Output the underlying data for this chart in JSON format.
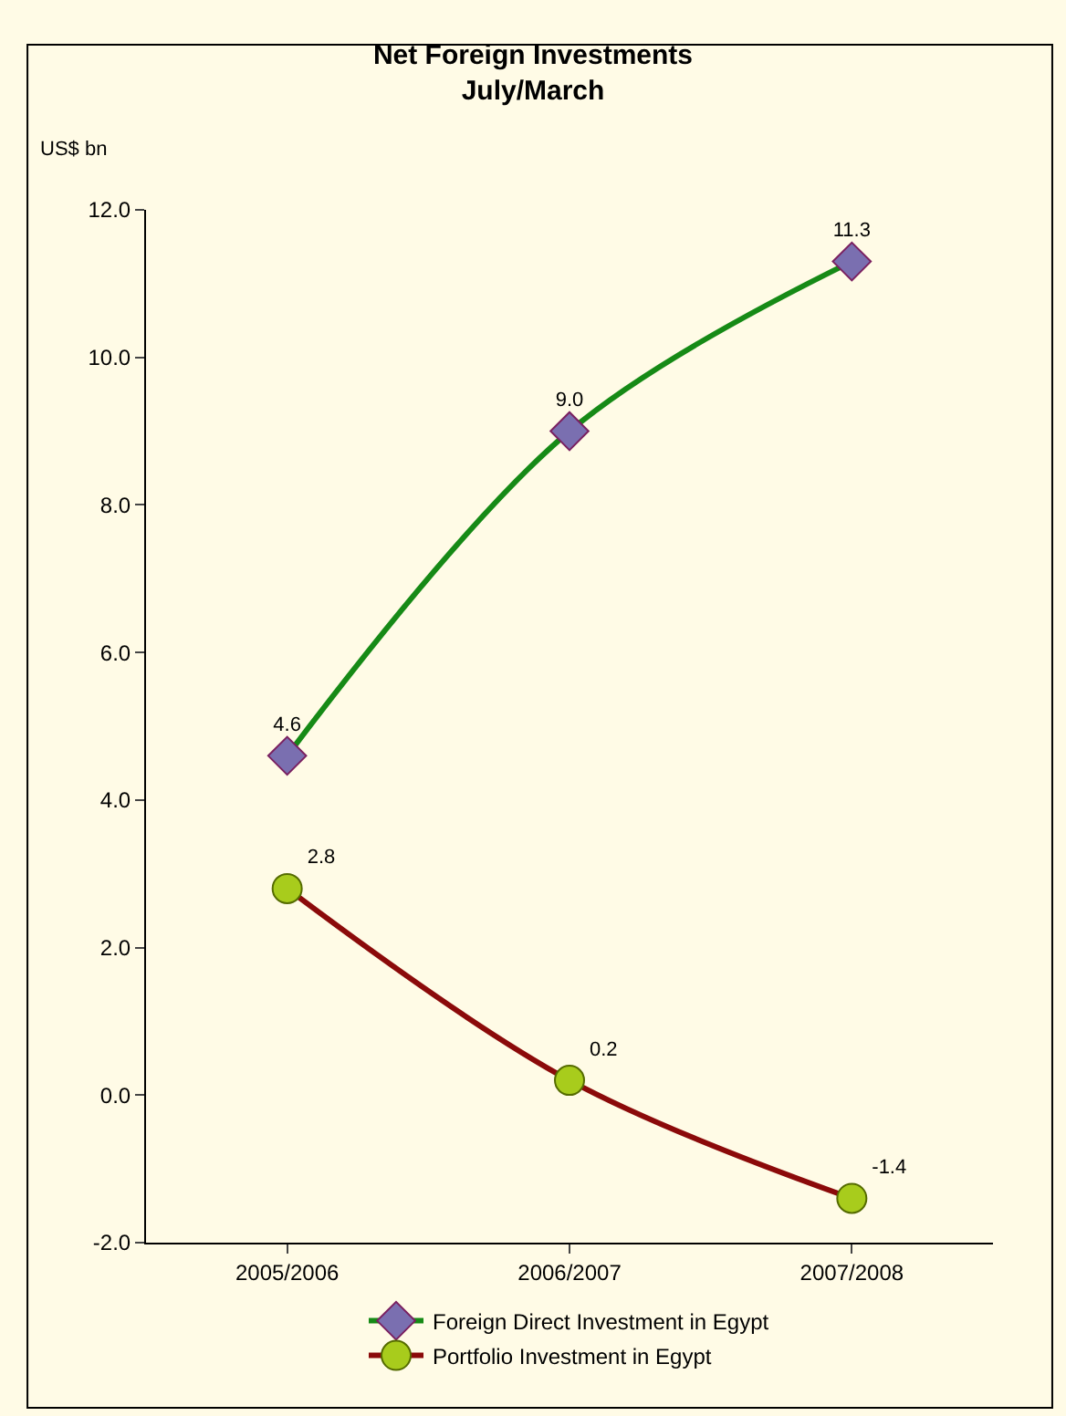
{
  "chart_data": {
    "type": "line",
    "title": "Net Foreign Investments\nJuly/March",
    "ylabel": "US$ bn",
    "categories": [
      "2005/2006",
      "2006/2007",
      "2007/2008"
    ],
    "series": [
      {
        "name": "Foreign Direct Investment in Egypt",
        "color": "#168a16",
        "marker": "diamond",
        "colors": [
          "#7a6fb0",
          "#7a6fb0",
          "#7a6fb0"
        ],
        "values": [
          4.6,
          9.0,
          11.3
        ],
        "value_labels": [
          "4.6",
          "9.0",
          "11.3"
        ]
      },
      {
        "name": "Portfolio Investment in Egypt",
        "color": "#8b0a0a",
        "marker": "circle",
        "colors": [
          "#a8cc1c",
          "#a8cc1c",
          "#a8cc1c"
        ],
        "values": [
          2.8,
          0.2,
          -1.4
        ],
        "value_labels": [
          "2.8",
          "0.2",
          "-1.4"
        ]
      }
    ],
    "ylim": [
      -2,
      12
    ],
    "yticks": [
      {
        "value": -2,
        "label": "-2.0"
      },
      {
        "value": 0,
        "label": "0.0"
      },
      {
        "value": 2,
        "label": "2.0"
      },
      {
        "value": 4,
        "label": "4.0"
      },
      {
        "value": 6,
        "label": "6.0"
      },
      {
        "value": 8,
        "label": "8.0"
      },
      {
        "value": 10,
        "label": "10.0"
      },
      {
        "value": 12,
        "label": "12.0"
      }
    ],
    "grid": false,
    "legend": "bottom",
    "line_style": "solid"
  }
}
